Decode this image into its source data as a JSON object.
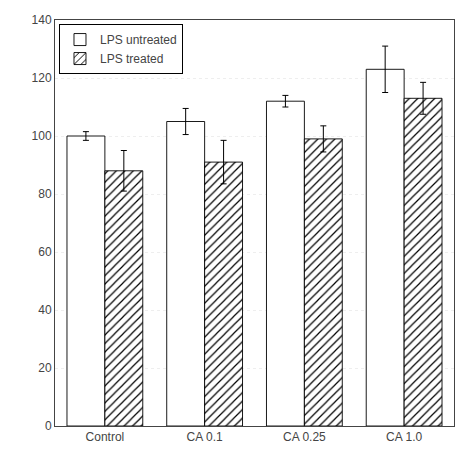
{
  "chart_data": {
    "type": "bar",
    "categories": [
      "Control",
      "CA 0.1",
      "CA 0.25",
      "CA 1.0"
    ],
    "series": [
      {
        "name": "LPS untreated",
        "color": "#ffffff",
        "values": [
          100,
          105,
          112,
          123
        ],
        "errors": [
          1.5,
          4.5,
          2.0,
          8.0
        ]
      },
      {
        "name": "LPS treated",
        "color": "#ffffff",
        "values": [
          88,
          91,
          99,
          113
        ],
        "errors": [
          7.0,
          7.5,
          4.5,
          5.5
        ]
      }
    ],
    "ylim": [
      0,
      140
    ],
    "yticks": [
      0,
      20,
      40,
      60,
      80,
      100,
      120,
      140
    ],
    "grid": true,
    "legend": "upper left"
  }
}
